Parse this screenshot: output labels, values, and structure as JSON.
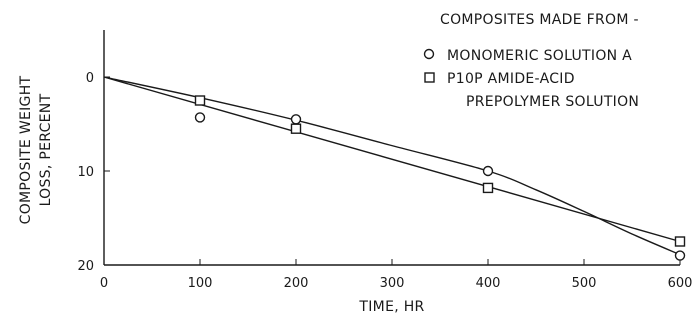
{
  "chart_data": {
    "type": "scatter",
    "title": "",
    "xlabel": "TIME, HR",
    "ylabel_line1": "COMPOSITE WEIGHT",
    "ylabel_line2": "LOSS, PERCENT",
    "xlim": [
      0,
      600
    ],
    "ylim": [
      0,
      20
    ],
    "y_inverted": true,
    "xticks": [
      0,
      100,
      200,
      300,
      400,
      500,
      600
    ],
    "yticks": [
      0,
      10,
      20
    ],
    "grid": false,
    "legend_position": "top-right",
    "legend_title": "COMPOSITES MADE FROM -",
    "series": [
      {
        "name": "MONOMERIC SOLUTION A",
        "marker": "circle",
        "x": [
          100,
          200,
          400,
          600
        ],
        "y": [
          4.3,
          4.5,
          10.0,
          19.0
        ],
        "curve_x": [
          0,
          100,
          200,
          300,
          400,
          450,
          500,
          550,
          600
        ],
        "curve_y": [
          0,
          2.2,
          4.6,
          7.3,
          10.0,
          12.0,
          14.3,
          16.7,
          18.9
        ]
      },
      {
        "name_line1": "P10P AMIDE-ACID",
        "name_line2": "PREPOLYMER SOLUTION",
        "marker": "square",
        "x": [
          100,
          200,
          400,
          600
        ],
        "y": [
          2.5,
          5.5,
          11.8,
          17.5
        ],
        "curve_x": [
          0,
          600
        ],
        "curve_y": [
          0,
          17.5
        ]
      }
    ]
  }
}
